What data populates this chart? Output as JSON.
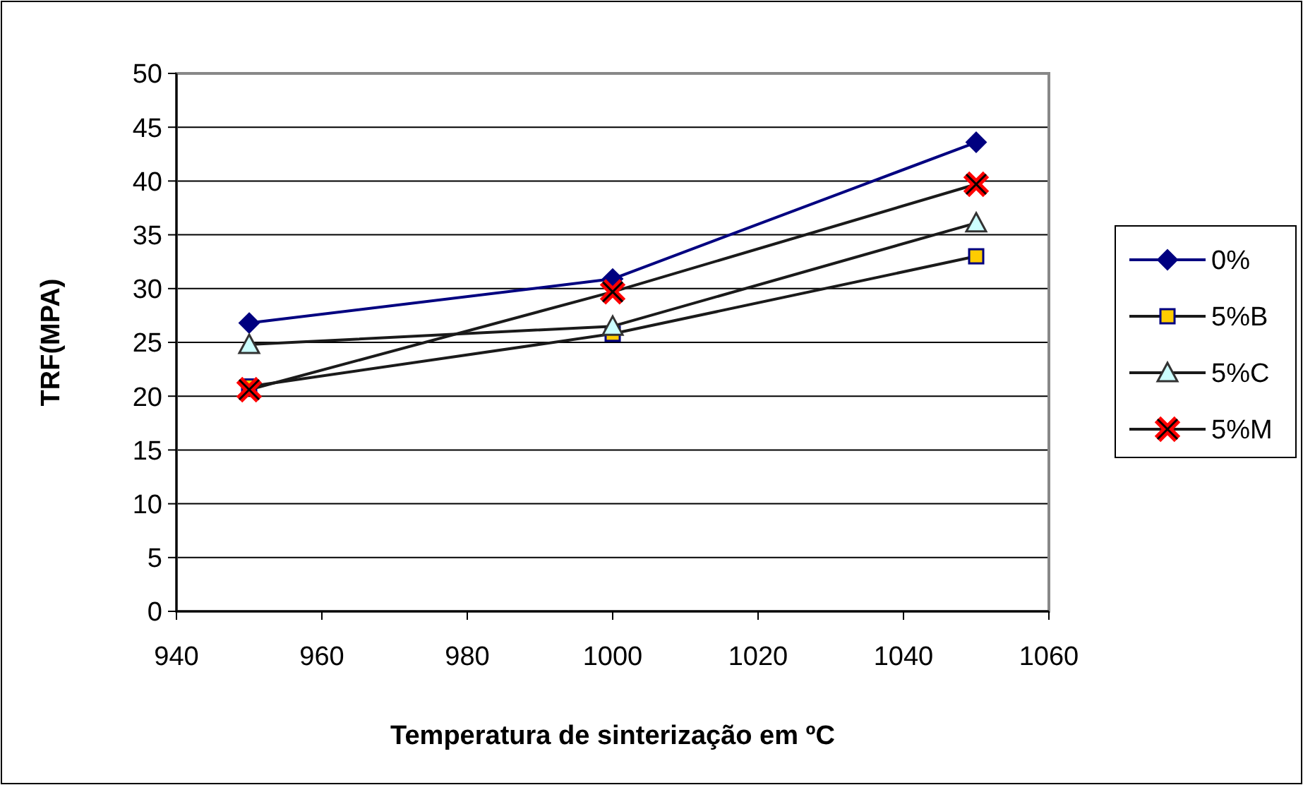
{
  "chart_data": {
    "type": "line",
    "xlabel": "Temperatura de sinterização em ºC",
    "ylabel": "TRF(MPA)",
    "x": [
      950,
      1000,
      1050
    ],
    "series": [
      {
        "name": "0%",
        "color": "#000080",
        "marker": "diamond",
        "values": [
          26.8,
          30.9,
          43.6
        ]
      },
      {
        "name": "5%B",
        "color": "#ffcc00",
        "marker": "square",
        "values": [
          20.9,
          25.8,
          33.0
        ]
      },
      {
        "name": "5%C",
        "color": "#ccffff",
        "marker": "triangle",
        "values": [
          24.8,
          26.5,
          36.1
        ]
      },
      {
        "name": "5%M",
        "color": "#ff0000",
        "marker": "cross",
        "values": [
          20.6,
          29.7,
          39.7
        ]
      }
    ],
    "xlim": [
      940,
      1060
    ],
    "xticks": [
      940,
      960,
      980,
      1000,
      1020,
      1040,
      1060
    ],
    "ylim": [
      0,
      50
    ],
    "yticks": [
      0,
      5,
      10,
      15,
      20,
      25,
      30,
      35,
      40,
      45,
      50
    ],
    "grid": "y",
    "legend": "right",
    "line_style": "solid"
  }
}
